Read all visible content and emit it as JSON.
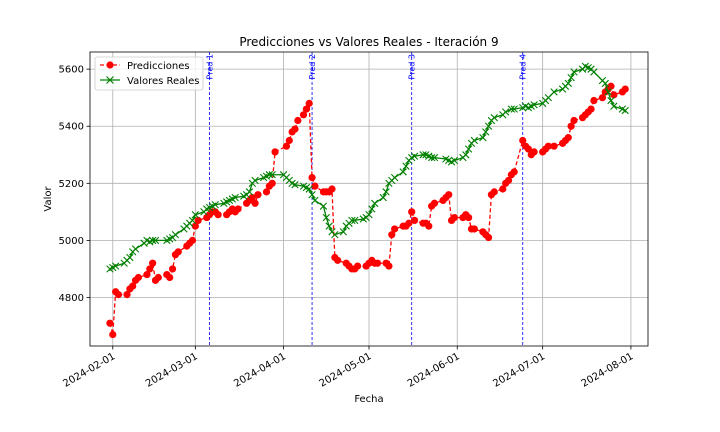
{
  "chart_data": {
    "type": "line",
    "title": "Predicciones vs Valores Reales - Iteración 9",
    "xlabel": "Fecha",
    "ylabel": "Valor",
    "x_ticks": [
      "2024-02-01",
      "2024-03-01",
      "2024-04-01",
      "2024-05-01",
      "2024-06-01",
      "2024-07-01",
      "2024-08-01"
    ],
    "y_ticks": [
      4800,
      5000,
      5200,
      5400,
      5600
    ],
    "xlim": [
      "2024-01-24",
      "2024-08-07"
    ],
    "ylim": [
      4630,
      5660
    ],
    "grid": true,
    "legend_position": "top-left",
    "vertical_lines": [
      {
        "label": "Pred 1",
        "date": "2024-03-06",
        "color": "#0000ff"
      },
      {
        "label": "Pred 2",
        "date": "2024-04-11",
        "color": "#0000ff"
      },
      {
        "label": "Pred 3",
        "date": "2024-05-16",
        "color": "#0000ff"
      },
      {
        "label": "Pred 4",
        "date": "2024-06-24",
        "color": "#0000ff"
      }
    ],
    "series": [
      {
        "name": "Predicciones",
        "color": "#ff0000",
        "style": "dashed-circle",
        "points": [
          [
            "2024-01-31",
            4710
          ],
          [
            "2024-02-01",
            4670
          ],
          [
            "2024-02-02",
            4820
          ],
          [
            "2024-02-03",
            4810
          ],
          [
            "2024-02-06",
            4810
          ],
          [
            "2024-02-07",
            4830
          ],
          [
            "2024-02-08",
            4840
          ],
          [
            "2024-02-09",
            4860
          ],
          [
            "2024-02-10",
            4870
          ],
          [
            "2024-02-13",
            4880
          ],
          [
            "2024-02-14",
            4900
          ],
          [
            "2024-02-15",
            4920
          ],
          [
            "2024-02-16",
            4860
          ],
          [
            "2024-02-17",
            4870
          ],
          [
            "2024-02-20",
            4880
          ],
          [
            "2024-02-21",
            4870
          ],
          [
            "2024-02-22",
            4900
          ],
          [
            "2024-02-23",
            4950
          ],
          [
            "2024-02-24",
            4960
          ],
          [
            "2024-02-27",
            4980
          ],
          [
            "2024-02-28",
            4990
          ],
          [
            "2024-02-29",
            5000
          ],
          [
            "2024-03-01",
            5050
          ],
          [
            "2024-03-02",
            5070
          ],
          [
            "2024-03-05",
            5080
          ],
          [
            "2024-03-06",
            5090
          ],
          [
            "2024-03-07",
            5100
          ],
          [
            "2024-03-08",
            5100
          ],
          [
            "2024-03-09",
            5090
          ],
          [
            "2024-03-12",
            5090
          ],
          [
            "2024-03-13",
            5100
          ],
          [
            "2024-03-14",
            5110
          ],
          [
            "2024-03-15",
            5100
          ],
          [
            "2024-03-16",
            5110
          ],
          [
            "2024-03-19",
            5130
          ],
          [
            "2024-03-20",
            5140
          ],
          [
            "2024-03-21",
            5150
          ],
          [
            "2024-03-22",
            5130
          ],
          [
            "2024-03-23",
            5160
          ],
          [
            "2024-03-26",
            5170
          ],
          [
            "2024-03-27",
            5190
          ],
          [
            "2024-03-28",
            5200
          ],
          [
            "2024-03-29",
            5310
          ],
          [
            "2024-04-02",
            5330
          ],
          [
            "2024-04-03",
            5350
          ],
          [
            "2024-04-04",
            5380
          ],
          [
            "2024-04-05",
            5390
          ],
          [
            "2024-04-06",
            5420
          ],
          [
            "2024-04-08",
            5440
          ],
          [
            "2024-04-09",
            5460
          ],
          [
            "2024-04-10",
            5480
          ],
          [
            "2024-04-11",
            5220
          ],
          [
            "2024-04-12",
            5190
          ],
          [
            "2024-04-15",
            5170
          ],
          [
            "2024-04-16",
            5170
          ],
          [
            "2024-04-17",
            5170
          ],
          [
            "2024-04-18",
            5180
          ],
          [
            "2024-04-19",
            4940
          ],
          [
            "2024-04-20",
            4930
          ],
          [
            "2024-04-23",
            4920
          ],
          [
            "2024-04-24",
            4910
          ],
          [
            "2024-04-25",
            4900
          ],
          [
            "2024-04-26",
            4900
          ],
          [
            "2024-04-27",
            4910
          ],
          [
            "2024-04-30",
            4910
          ],
          [
            "2024-05-01",
            4920
          ],
          [
            "2024-05-02",
            4930
          ],
          [
            "2024-05-03",
            4920
          ],
          [
            "2024-05-04",
            4920
          ],
          [
            "2024-05-07",
            4920
          ],
          [
            "2024-05-08",
            4910
          ],
          [
            "2024-05-09",
            5020
          ],
          [
            "2024-05-10",
            5040
          ],
          [
            "2024-05-13",
            5050
          ],
          [
            "2024-05-14",
            5050
          ],
          [
            "2024-05-15",
            5060
          ],
          [
            "2024-05-16",
            5100
          ],
          [
            "2024-05-17",
            5070
          ],
          [
            "2024-05-20",
            5060
          ],
          [
            "2024-05-21",
            5060
          ],
          [
            "2024-05-22",
            5050
          ],
          [
            "2024-05-23",
            5120
          ],
          [
            "2024-05-24",
            5130
          ],
          [
            "2024-05-27",
            5140
          ],
          [
            "2024-05-28",
            5150
          ],
          [
            "2024-05-29",
            5160
          ],
          [
            "2024-05-30",
            5070
          ],
          [
            "2024-05-31",
            5080
          ],
          [
            "2024-06-03",
            5080
          ],
          [
            "2024-06-04",
            5090
          ],
          [
            "2024-06-05",
            5080
          ],
          [
            "2024-06-06",
            5040
          ],
          [
            "2024-06-07",
            5040
          ],
          [
            "2024-06-10",
            5030
          ],
          [
            "2024-06-11",
            5020
          ],
          [
            "2024-06-12",
            5010
          ],
          [
            "2024-06-13",
            5160
          ],
          [
            "2024-06-14",
            5170
          ],
          [
            "2024-06-17",
            5180
          ],
          [
            "2024-06-18",
            5200
          ],
          [
            "2024-06-19",
            5210
          ],
          [
            "2024-06-20",
            5230
          ],
          [
            "2024-06-21",
            5240
          ],
          [
            "2024-06-24",
            5350
          ],
          [
            "2024-06-25",
            5330
          ],
          [
            "2024-06-26",
            5320
          ],
          [
            "2024-06-27",
            5300
          ],
          [
            "2024-06-28",
            5310
          ],
          [
            "2024-07-01",
            5310
          ],
          [
            "2024-07-02",
            5320
          ],
          [
            "2024-07-03",
            5330
          ],
          [
            "2024-07-05",
            5330
          ],
          [
            "2024-07-08",
            5340
          ],
          [
            "2024-07-09",
            5350
          ],
          [
            "2024-07-10",
            5360
          ],
          [
            "2024-07-11",
            5400
          ],
          [
            "2024-07-12",
            5420
          ],
          [
            "2024-07-15",
            5430
          ],
          [
            "2024-07-16",
            5440
          ],
          [
            "2024-07-17",
            5450
          ],
          [
            "2024-07-18",
            5460
          ],
          [
            "2024-07-19",
            5490
          ],
          [
            "2024-07-22",
            5500
          ],
          [
            "2024-07-23",
            5520
          ],
          [
            "2024-07-24",
            5530
          ],
          [
            "2024-07-25",
            5540
          ],
          [
            "2024-07-26",
            5510
          ],
          [
            "2024-07-29",
            5520
          ],
          [
            "2024-07-30",
            5530
          ]
        ]
      },
      {
        "name": "Valores Reales",
        "color": "#008000",
        "style": "solid-x",
        "points": [
          [
            "2024-01-31",
            4900
          ],
          [
            "2024-02-01",
            4905
          ],
          [
            "2024-02-02",
            4910
          ],
          [
            "2024-02-05",
            4920
          ],
          [
            "2024-02-06",
            4930
          ],
          [
            "2024-02-07",
            4940
          ],
          [
            "2024-02-08",
            4960
          ],
          [
            "2024-02-09",
            4970
          ],
          [
            "2024-02-12",
            4990
          ],
          [
            "2024-02-13",
            5000
          ],
          [
            "2024-02-14",
            4995
          ],
          [
            "2024-02-15",
            5000
          ],
          [
            "2024-02-16",
            5000
          ],
          [
            "2024-02-20",
            5000
          ],
          [
            "2024-02-21",
            5005
          ],
          [
            "2024-02-22",
            5010
          ],
          [
            "2024-02-23",
            5020
          ],
          [
            "2024-02-26",
            5040
          ],
          [
            "2024-02-27",
            5050
          ],
          [
            "2024-02-28",
            5060
          ],
          [
            "2024-02-29",
            5070
          ],
          [
            "2024-03-01",
            5090
          ],
          [
            "2024-03-04",
            5100
          ],
          [
            "2024-03-05",
            5110
          ],
          [
            "2024-03-06",
            5115
          ],
          [
            "2024-03-07",
            5120
          ],
          [
            "2024-03-08",
            5125
          ],
          [
            "2024-03-11",
            5130
          ],
          [
            "2024-03-12",
            5135
          ],
          [
            "2024-03-13",
            5140
          ],
          [
            "2024-03-14",
            5145
          ],
          [
            "2024-03-15",
            5150
          ],
          [
            "2024-03-18",
            5155
          ],
          [
            "2024-03-19",
            5160
          ],
          [
            "2024-03-20",
            5170
          ],
          [
            "2024-03-21",
            5200
          ],
          [
            "2024-03-22",
            5210
          ],
          [
            "2024-03-25",
            5220
          ],
          [
            "2024-03-26",
            5225
          ],
          [
            "2024-03-27",
            5230
          ],
          [
            "2024-03-28",
            5230
          ],
          [
            "2024-04-01",
            5230
          ],
          [
            "2024-04-02",
            5220
          ],
          [
            "2024-04-03",
            5210
          ],
          [
            "2024-04-04",
            5200
          ],
          [
            "2024-04-05",
            5195
          ],
          [
            "2024-04-08",
            5190
          ],
          [
            "2024-04-09",
            5185
          ],
          [
            "2024-04-10",
            5180
          ],
          [
            "2024-04-11",
            5160
          ],
          [
            "2024-04-12",
            5140
          ],
          [
            "2024-04-15",
            5120
          ],
          [
            "2024-04-16",
            5080
          ],
          [
            "2024-04-17",
            5050
          ],
          [
            "2024-04-18",
            5030
          ],
          [
            "2024-04-19",
            5020
          ],
          [
            "2024-04-22",
            5030
          ],
          [
            "2024-04-23",
            5050
          ],
          [
            "2024-04-24",
            5060
          ],
          [
            "2024-04-25",
            5070
          ],
          [
            "2024-04-26",
            5070
          ],
          [
            "2024-04-29",
            5075
          ],
          [
            "2024-04-30",
            5080
          ],
          [
            "2024-05-01",
            5090
          ],
          [
            "2024-05-02",
            5110
          ],
          [
            "2024-05-03",
            5130
          ],
          [
            "2024-05-06",
            5150
          ],
          [
            "2024-05-07",
            5170
          ],
          [
            "2024-05-08",
            5200
          ],
          [
            "2024-05-09",
            5210
          ],
          [
            "2024-05-10",
            5220
          ],
          [
            "2024-05-13",
            5240
          ],
          [
            "2024-05-14",
            5260
          ],
          [
            "2024-05-15",
            5280
          ],
          [
            "2024-05-16",
            5290
          ],
          [
            "2024-05-17",
            5295
          ],
          [
            "2024-05-20",
            5300
          ],
          [
            "2024-05-21",
            5300
          ],
          [
            "2024-05-22",
            5295
          ],
          [
            "2024-05-23",
            5290
          ],
          [
            "2024-05-24",
            5290
          ],
          [
            "2024-05-28",
            5285
          ],
          [
            "2024-05-29",
            5280
          ],
          [
            "2024-05-30",
            5275
          ],
          [
            "2024-05-31",
            5280
          ],
          [
            "2024-06-03",
            5290
          ],
          [
            "2024-06-04",
            5300
          ],
          [
            "2024-06-05",
            5320
          ],
          [
            "2024-06-06",
            5340
          ],
          [
            "2024-06-07",
            5350
          ],
          [
            "2024-06-10",
            5360
          ],
          [
            "2024-06-11",
            5380
          ],
          [
            "2024-06-12",
            5400
          ],
          [
            "2024-06-13",
            5420
          ],
          [
            "2024-06-14",
            5430
          ],
          [
            "2024-06-17",
            5440
          ],
          [
            "2024-06-18",
            5450
          ],
          [
            "2024-06-20",
            5460
          ],
          [
            "2024-06-21",
            5460
          ],
          [
            "2024-06-24",
            5465
          ],
          [
            "2024-06-25",
            5470
          ],
          [
            "2024-06-26",
            5465
          ],
          [
            "2024-06-27",
            5470
          ],
          [
            "2024-06-28",
            5475
          ],
          [
            "2024-07-01",
            5480
          ],
          [
            "2024-07-02",
            5490
          ],
          [
            "2024-07-03",
            5500
          ],
          [
            "2024-07-05",
            5520
          ],
          [
            "2024-07-08",
            5530
          ],
          [
            "2024-07-09",
            5540
          ],
          [
            "2024-07-10",
            5550
          ],
          [
            "2024-07-11",
            5570
          ],
          [
            "2024-07-12",
            5590
          ],
          [
            "2024-07-15",
            5600
          ],
          [
            "2024-07-16",
            5610
          ],
          [
            "2024-07-17",
            5605
          ],
          [
            "2024-07-18",
            5600
          ],
          [
            "2024-07-19",
            5590
          ],
          [
            "2024-07-22",
            5560
          ],
          [
            "2024-07-23",
            5550
          ],
          [
            "2024-07-24",
            5520
          ],
          [
            "2024-07-25",
            5490
          ],
          [
            "2024-07-26",
            5470
          ],
          [
            "2024-07-29",
            5460
          ],
          [
            "2024-07-30",
            5455
          ]
        ]
      }
    ]
  }
}
